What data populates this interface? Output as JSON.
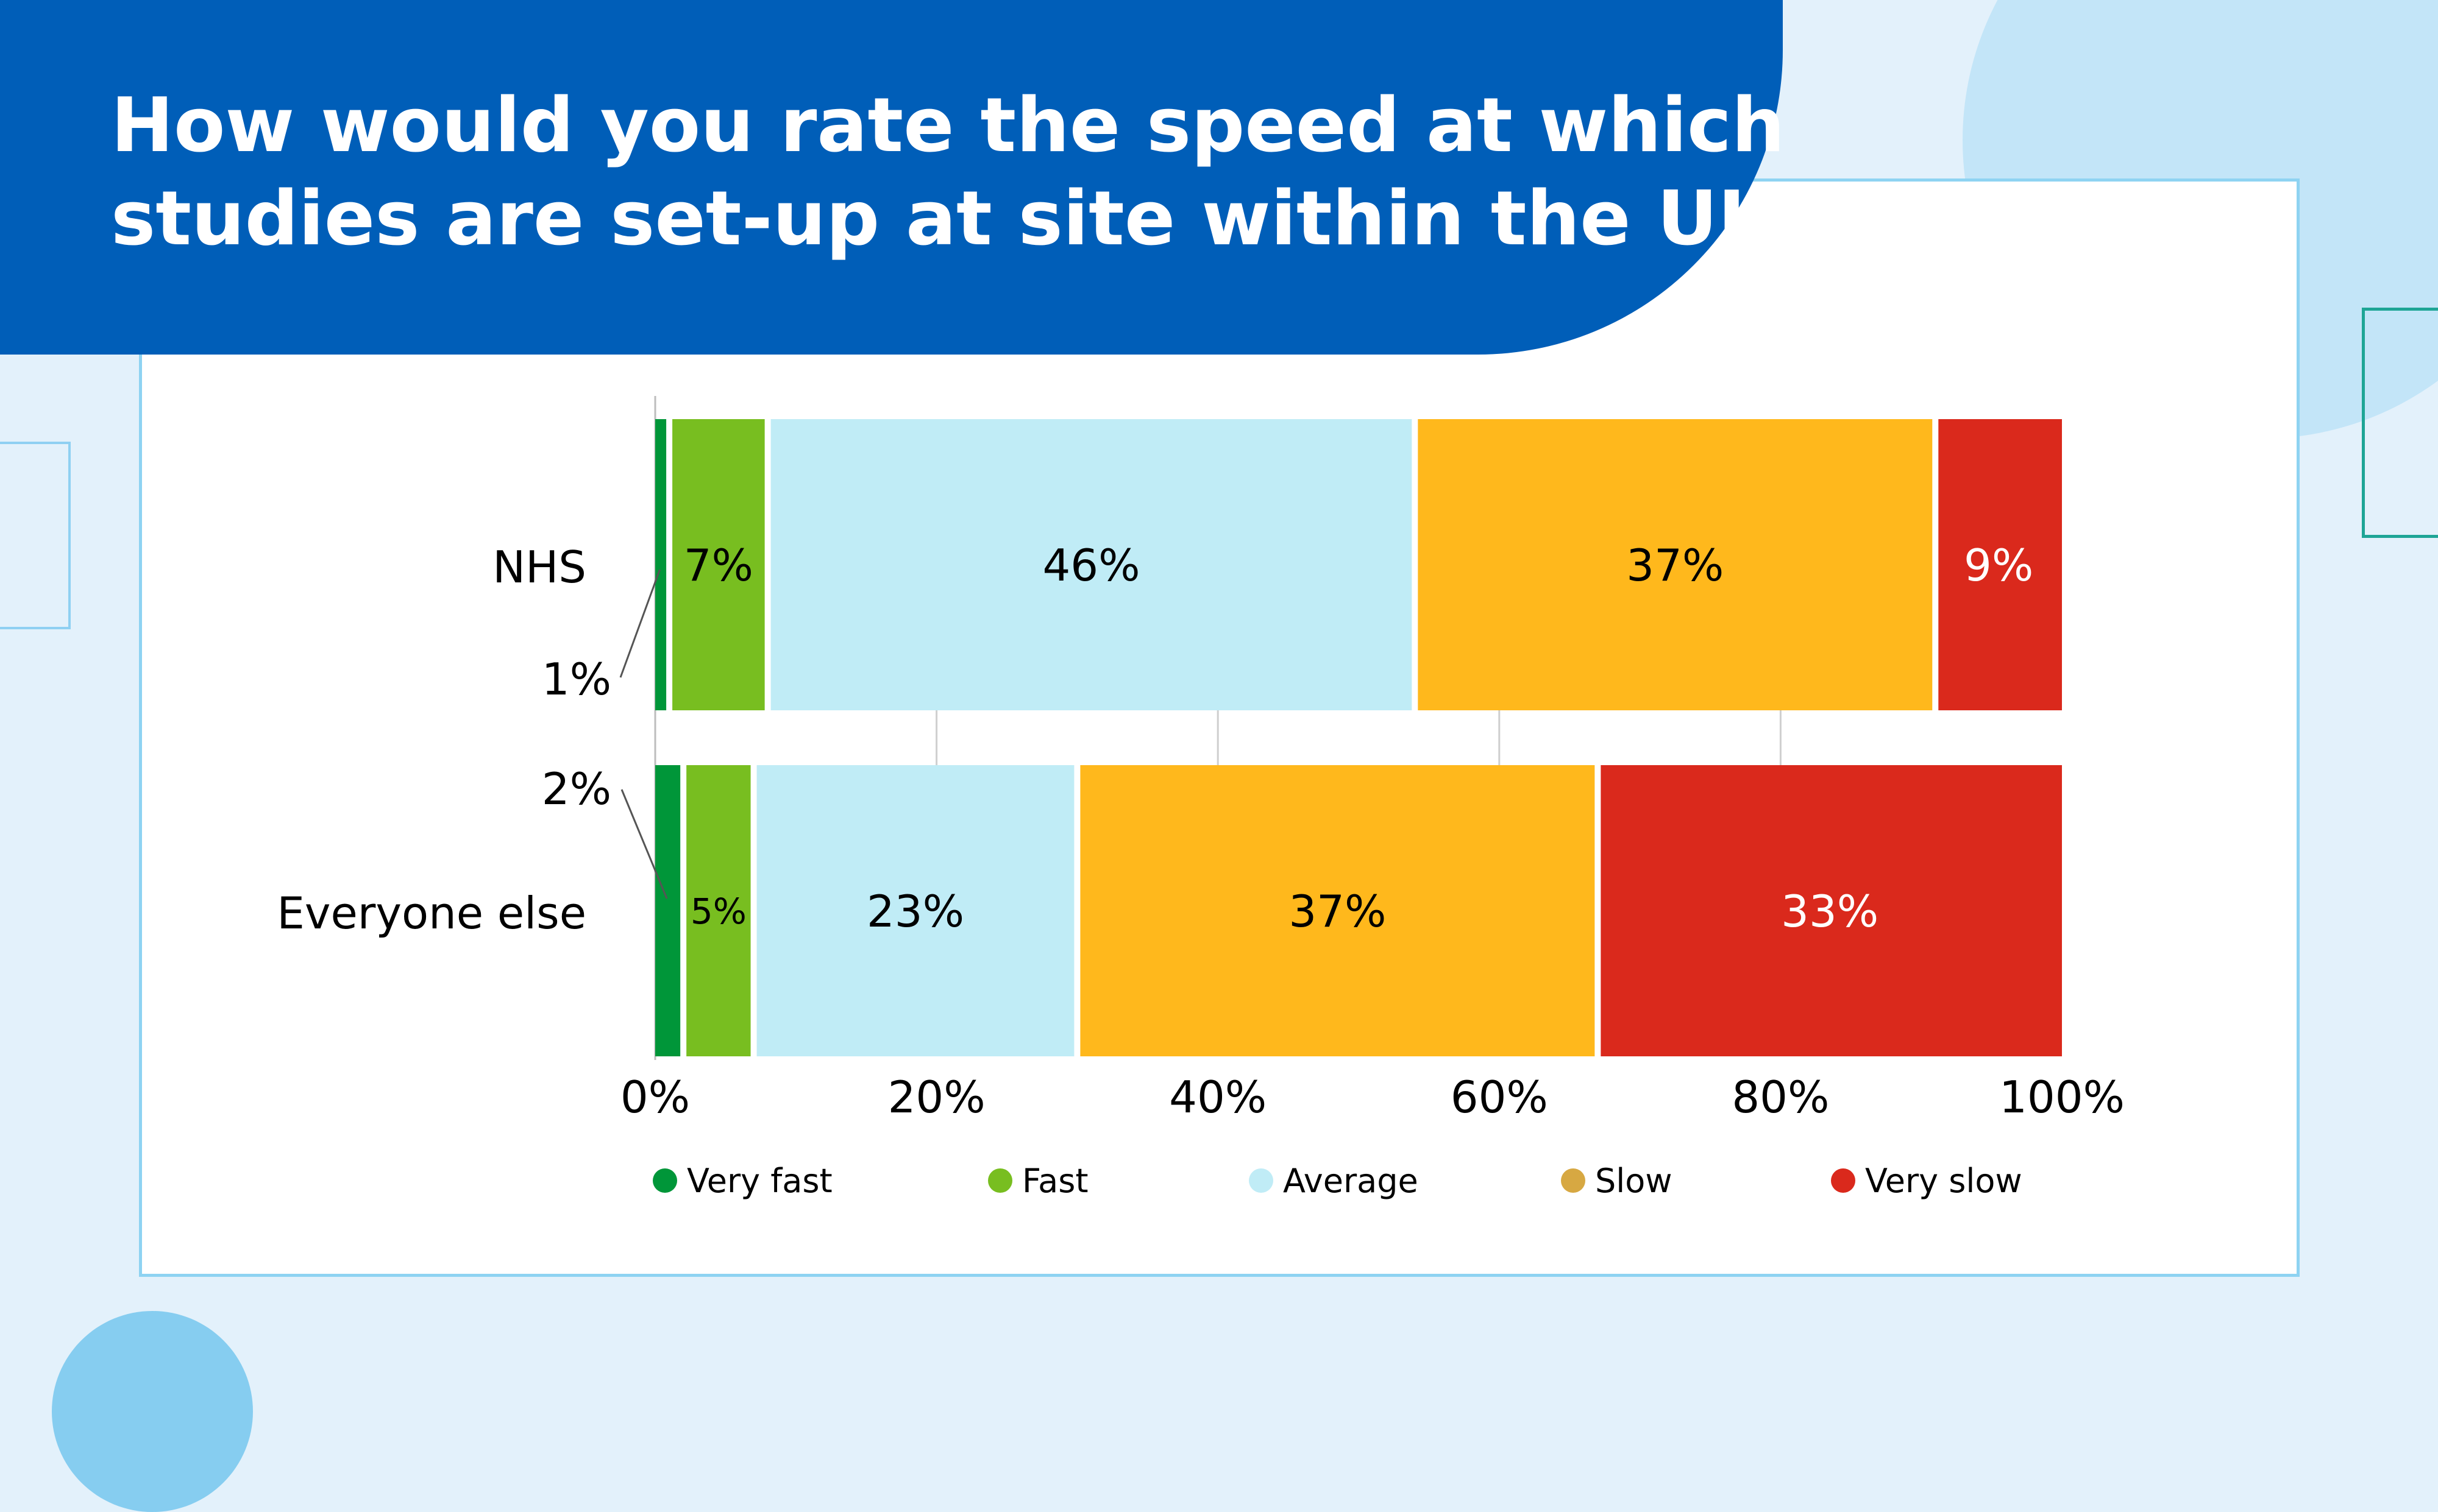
{
  "title_lines": [
    "How would you rate the speed at which",
    "studies are set-up at site within the UK?"
  ],
  "chart_data": {
    "type": "bar",
    "orientation": "horizontal",
    "stacked": true,
    "categories": [
      "NHS",
      "Everyone else"
    ],
    "series": [
      {
        "name": "Very fast",
        "values": [
          1,
          2
        ],
        "labels": [
          "1%",
          "2%"
        ],
        "color": "#009639"
      },
      {
        "name": "Fast",
        "values": [
          7,
          5
        ],
        "labels": [
          "7%",
          "5%"
        ],
        "color": "#78be20"
      },
      {
        "name": "Average",
        "values": [
          46,
          23
        ],
        "labels": [
          "46%",
          "23%"
        ],
        "color": "#c0ecf6"
      },
      {
        "name": "Slow",
        "values": [
          37,
          37
        ],
        "labels": [
          "37%",
          "37%"
        ],
        "color": "#ffb81c"
      },
      {
        "name": "Very slow",
        "values": [
          9,
          33
        ],
        "labels": [
          "9%",
          "33%"
        ],
        "color": "#da291c"
      }
    ],
    "xlim": [
      0,
      100
    ],
    "xticks": [
      0,
      20,
      40,
      60,
      80,
      100
    ],
    "xtick_labels": [
      "0%",
      "20%",
      "40%",
      "60%",
      "80%",
      "100%"
    ],
    "legend_colors": [
      "#009639",
      "#78be20",
      "#c0ecf6",
      "#d7a842",
      "#da291c"
    ],
    "legend_position": "bottom",
    "label_colors": [
      "#000000",
      "#000000",
      "#000000",
      "#000000",
      "#ffffff"
    ],
    "grid": true
  }
}
